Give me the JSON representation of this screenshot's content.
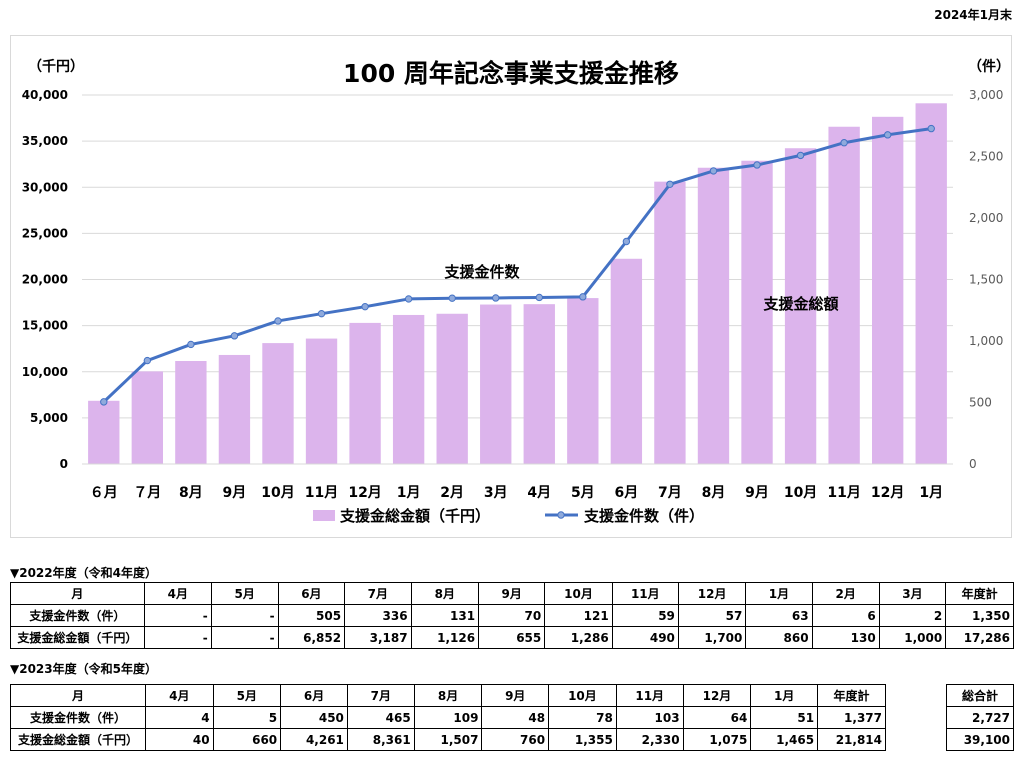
{
  "date_note": "2024年1月末",
  "chart_data": {
    "type": "bar",
    "title": "100 周年記念事業支援金推移",
    "y_left_unit": "（千円）",
    "y_right_unit": "（件）",
    "categories": [
      "６月",
      "７月",
      "8月",
      "9月",
      "10月",
      "11月",
      "12月",
      "1月",
      "2月",
      "3月",
      "4月",
      "5月",
      "6月",
      "7月",
      "8月",
      "9月",
      "10月",
      "11月",
      "12月",
      "1月"
    ],
    "series": [
      {
        "name": "支援金総金額（千円）",
        "type": "bar",
        "axis": "left",
        "color": "#dcb4ec",
        "values": [
          6852,
          10039,
          11165,
          11820,
          13106,
          13596,
          15296,
          16156,
          16286,
          17286,
          17326,
          17986,
          22247,
          30608,
          32115,
          32875,
          34230,
          36560,
          37635,
          39100
        ]
      },
      {
        "name": "支援金件数（件）",
        "type": "line",
        "axis": "right",
        "color": "#4472c4",
        "values": [
          505,
          841,
          972,
          1042,
          1163,
          1222,
          1279,
          1342,
          1348,
          1350,
          1354,
          1359,
          1809,
          2274,
          2383,
          2431,
          2509,
          2612,
          2676,
          2727
        ]
      }
    ],
    "y_left": {
      "min": 0,
      "max": 40000,
      "ticks": [
        "0",
        "5,000",
        "10,000",
        "15,000",
        "20,000",
        "25,000",
        "30,000",
        "35,000",
        "40,000"
      ]
    },
    "y_right": {
      "min": 0,
      "max": 3000,
      "ticks": [
        "0",
        "500",
        "1,000",
        "1,500",
        "2,000",
        "2,500",
        "3,000"
      ]
    },
    "annotations": [
      "支援金件数",
      "支援金総額"
    ],
    "grid": true,
    "legend_position": "bottom"
  },
  "table2022": {
    "title": "▼2022年度（令和4年度）",
    "header": [
      "月",
      "4月",
      "5月",
      "6月",
      "7月",
      "8月",
      "9月",
      "10月",
      "11月",
      "12月",
      "1月",
      "2月",
      "3月",
      "年度計"
    ],
    "rows": [
      [
        "支援金件数（件）",
        "-",
        "-",
        "505",
        "336",
        "131",
        "70",
        "121",
        "59",
        "57",
        "63",
        "6",
        "2",
        "1,350"
      ],
      [
        "支援金総金額（千円）",
        "-",
        "-",
        "6,852",
        "3,187",
        "1,126",
        "655",
        "1,286",
        "490",
        "1,700",
        "860",
        "130",
        "1,000",
        "17,286"
      ]
    ]
  },
  "table2023": {
    "title": "▼2023年度（令和5年度）",
    "header": [
      "月",
      "4月",
      "5月",
      "6月",
      "7月",
      "8月",
      "9月",
      "10月",
      "11月",
      "12月",
      "1月",
      "年度計"
    ],
    "rows": [
      [
        "支援金件数（件）",
        "4",
        "5",
        "450",
        "465",
        "109",
        "48",
        "78",
        "103",
        "64",
        "51",
        "1,377"
      ],
      [
        "支援金総金額（千円）",
        "40",
        "660",
        "4,261",
        "8,361",
        "1,507",
        "760",
        "1,355",
        "2,330",
        "1,075",
        "1,465",
        "21,814"
      ]
    ]
  },
  "total": {
    "header": "総合計",
    "rows": [
      "2,727",
      "39,100"
    ]
  }
}
